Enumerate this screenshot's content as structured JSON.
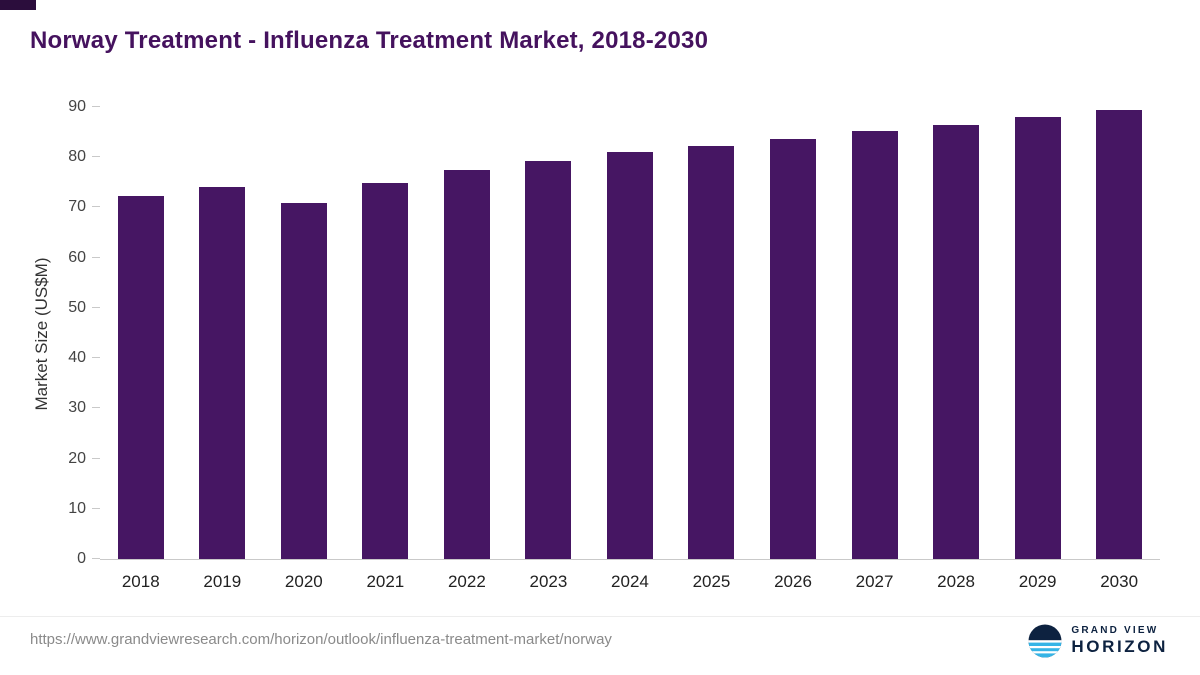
{
  "header": {
    "title": "Norway Treatment - Influenza Treatment Market, 2018-2030"
  },
  "accent_color": "#45125e",
  "chart_data": {
    "type": "bar",
    "title": "Norway Treatment - Influenza Treatment Market, 2018-2030",
    "categories": [
      "2018",
      "2019",
      "2020",
      "2021",
      "2022",
      "2023",
      "2024",
      "2025",
      "2026",
      "2027",
      "2028",
      "2029",
      "2030"
    ],
    "values": [
      72.3,
      74.0,
      70.8,
      74.8,
      77.5,
      79.2,
      81.0,
      82.3,
      83.7,
      85.2,
      86.5,
      88.0,
      89.5
    ],
    "xlabel": "",
    "ylabel": "Market Size (US$M)",
    "ylim": [
      0,
      90
    ],
    "yticks": [
      0,
      10,
      20,
      30,
      40,
      50,
      60,
      70,
      80,
      90
    ],
    "bar_color": "#461663",
    "grid": false,
    "legend": false
  },
  "footer": {
    "source_url": "https://www.grandviewresearch.com/horizon/outlook/influenza-treatment-market/norway",
    "logo": {
      "line1": "GRAND VIEW",
      "line2": "HORIZON",
      "navy_color": "#0d2240",
      "blue_color": "#35b4e6"
    }
  }
}
